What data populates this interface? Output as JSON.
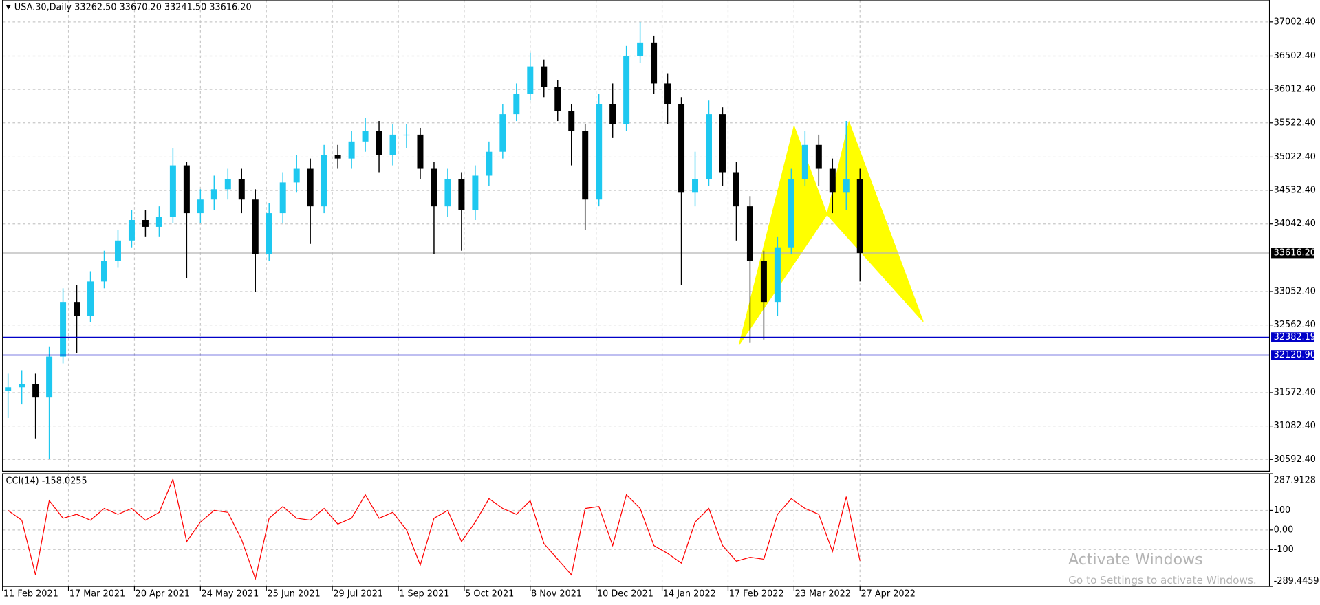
{
  "chart_data": [
    {
      "type": "candlestick",
      "title": "USA.30,Daily 33262.50 33670.20 33241.50 33616.20",
      "x": [
        2,
        7,
        12,
        17,
        22,
        27,
        32,
        37,
        42,
        47,
        52,
        57,
        62,
        67,
        72,
        77,
        82,
        87,
        92,
        97,
        102,
        107,
        112,
        117,
        122,
        127,
        132,
        137,
        142,
        147,
        152,
        157,
        162,
        167,
        172,
        177,
        182,
        187,
        192,
        197,
        202,
        207,
        212,
        217,
        222,
        227,
        232,
        237,
        242,
        247,
        252,
        257,
        262,
        267,
        272,
        277,
        282,
        287,
        292,
        297,
        302,
        307,
        312
      ],
      "open": [
        31600,
        31650,
        31700,
        31500,
        32100,
        32900,
        32700,
        33200,
        33500,
        33800,
        34100,
        34000,
        34150,
        34900,
        34200,
        34400,
        34550,
        34700,
        34400,
        33600,
        34200,
        34650,
        34850,
        34300,
        35050,
        35000,
        35250,
        35400,
        35050,
        35350,
        35350,
        34850,
        34300,
        34700,
        34250,
        34750,
        35100,
        35650,
        35950,
        36350,
        36050,
        35700,
        35400,
        34400,
        35800,
        35500,
        36500,
        36700,
        36100,
        35800,
        34500,
        34700,
        35650,
        34800,
        34300,
        33500,
        32900,
        33700,
        34700,
        35200,
        34850,
        34500,
        34700
      ],
      "high": [
        31850,
        31900,
        31850,
        32250,
        33100,
        33150,
        33350,
        33650,
        33950,
        34250,
        34250,
        34300,
        35150,
        34950,
        34550,
        34750,
        34850,
        34850,
        34550,
        34350,
        34800,
        35050,
        35000,
        35200,
        35200,
        35400,
        35600,
        35550,
        35500,
        35500,
        35450,
        34950,
        34850,
        34800,
        34900,
        35250,
        35800,
        36100,
        36550,
        36450,
        36150,
        35800,
        35500,
        35950,
        36100,
        36650,
        37000,
        36800,
        36250,
        35900,
        35100,
        35850,
        35750,
        34950,
        34450,
        33650,
        33850,
        34850,
        35400,
        35350,
        35000,
        35550,
        34850
      ],
      "low": [
        31200,
        31400,
        30900,
        30600,
        32000,
        32150,
        32600,
        33100,
        33400,
        33700,
        33850,
        33850,
        34050,
        33250,
        34050,
        34250,
        34400,
        34200,
        33050,
        33500,
        34050,
        34500,
        33750,
        34200,
        34850,
        34850,
        35100,
        34800,
        34900,
        35150,
        34700,
        33600,
        34150,
        33650,
        34100,
        34600,
        35000,
        35550,
        35850,
        35900,
        35550,
        34900,
        33950,
        34300,
        35300,
        35400,
        36400,
        35950,
        35500,
        33150,
        34300,
        34600,
        34600,
        33800,
        32300,
        32350,
        32700,
        33600,
        34600,
        34600,
        34200,
        34250,
        33200
      ],
      "close": [
        31650,
        31700,
        31500,
        32100,
        32900,
        32700,
        33200,
        33500,
        33800,
        34100,
        34000,
        34150,
        34900,
        34200,
        34400,
        34550,
        34700,
        34400,
        33600,
        34200,
        34650,
        34850,
        34300,
        35050,
        35000,
        35250,
        35400,
        35050,
        35350,
        35350,
        34850,
        34300,
        34700,
        34250,
        34750,
        35100,
        35650,
        35950,
        36350,
        36050,
        35700,
        35400,
        34400,
        35800,
        35500,
        36500,
        36700,
        36100,
        35800,
        34500,
        34700,
        35650,
        34800,
        34300,
        33500,
        32900,
        33700,
        34700,
        35200,
        34850,
        34500,
        34700,
        33616.2
      ],
      "up_color": "#1ec8f0",
      "down_color": "#000000",
      "grid": true,
      "xlim": [
        0,
        461
      ],
      "ylim": [
        30420,
        37323
      ],
      "xticks": [
        {
          "value": 0,
          "label": "11 Feb 2021"
        },
        {
          "value": 24,
          "label": "17 Mar 2021"
        },
        {
          "value": 48,
          "label": "20 Apr 2021"
        },
        {
          "value": 72,
          "label": "24 May 2021"
        },
        {
          "value": 96,
          "label": "25 Jun 2021"
        },
        {
          "value": 120,
          "label": "29 Jul 2021"
        },
        {
          "value": 144,
          "label": "1 Sep 2021"
        },
        {
          "value": 168,
          "label": "5 Oct 2021"
        },
        {
          "value": 192,
          "label": "8 Nov 2021"
        },
        {
          "value": 216,
          "label": "10 Dec 2021"
        },
        {
          "value": 240,
          "label": "14 Jan 2022"
        },
        {
          "value": 264,
          "label": "17 Feb 2022"
        },
        {
          "value": 288,
          "label": "23 Mar 2022"
        },
        {
          "value": 312,
          "label": "27 Apr 2022"
        }
      ],
      "yticks": [
        {
          "value": 37002.4,
          "label": "37002.40"
        },
        {
          "value": 36502.4,
          "label": "36502.40"
        },
        {
          "value": 36012.4,
          "label": "36012.40"
        },
        {
          "value": 35522.4,
          "label": "35522.40"
        },
        {
          "value": 35022.4,
          "label": "35022.40"
        },
        {
          "value": 34532.4,
          "label": "34532.40"
        },
        {
          "value": 34042.4,
          "label": "34042.40"
        },
        {
          "value": 33052.4,
          "label": "33052.40"
        },
        {
          "value": 32562.4,
          "label": "32562.40"
        },
        {
          "value": 31572.4,
          "label": "31572.40"
        },
        {
          "value": 31082.4,
          "label": "31082.40"
        },
        {
          "value": 30592.4,
          "label": "30592.40"
        }
      ],
      "hlines": [
        {
          "value": 32382.19,
          "color": "#0000c8"
        },
        {
          "value": 32120.9,
          "label": "32120.90",
          "color": "#0000c8"
        }
      ],
      "last_price": {
        "value": 33616.2,
        "label": "33616.20"
      },
      "pattern": {
        "x": [
          268,
          288,
          300,
          308,
          335
        ],
        "y": [
          32270,
          35474,
          34180,
          35535,
          32613
        ],
        "color": "#ffff00"
      }
    },
    {
      "type": "line",
      "title": "CCI(14) -158.0255",
      "color": "#ff0000",
      "x": [
        2,
        7,
        12,
        17,
        22,
        27,
        32,
        37,
        42,
        47,
        52,
        57,
        62,
        67,
        72,
        77,
        82,
        87,
        92,
        97,
        102,
        107,
        112,
        117,
        122,
        127,
        132,
        137,
        142,
        147,
        152,
        157,
        162,
        167,
        172,
        177,
        182,
        187,
        192,
        197,
        202,
        207,
        212,
        217,
        222,
        227,
        232,
        237,
        242,
        247,
        252,
        257,
        262,
        267,
        272,
        277,
        282,
        287,
        292,
        297,
        302,
        307,
        312
      ],
      "values": [
        100,
        50,
        -230,
        150,
        60,
        80,
        50,
        110,
        80,
        110,
        50,
        90,
        260,
        -60,
        40,
        100,
        90,
        -50,
        -250,
        60,
        120,
        60,
        50,
        110,
        30,
        60,
        180,
        60,
        90,
        0,
        -180,
        60,
        100,
        -60,
        40,
        160,
        110,
        80,
        150,
        -70,
        -150,
        -230,
        110,
        120,
        -80,
        180,
        110,
        -80,
        -120,
        -170,
        40,
        110,
        -80,
        -160,
        -140,
        -150,
        80,
        160,
        110,
        80,
        -110,
        170,
        -158.0255
      ],
      "xlim": [
        0,
        461
      ],
      "ylim": [
        -289.4459,
        287.9128
      ],
      "yticks": [
        287.9128,
        100,
        {
          "value": 0,
          "label": "0.00"
        },
        -100,
        -289.4459
      ],
      "grid_ticks": [
        100,
        0,
        -100
      ]
    }
  ],
  "watermark": {
    "title": "Activate Windows",
    "subtitle": "Go to Settings to activate Windows."
  }
}
